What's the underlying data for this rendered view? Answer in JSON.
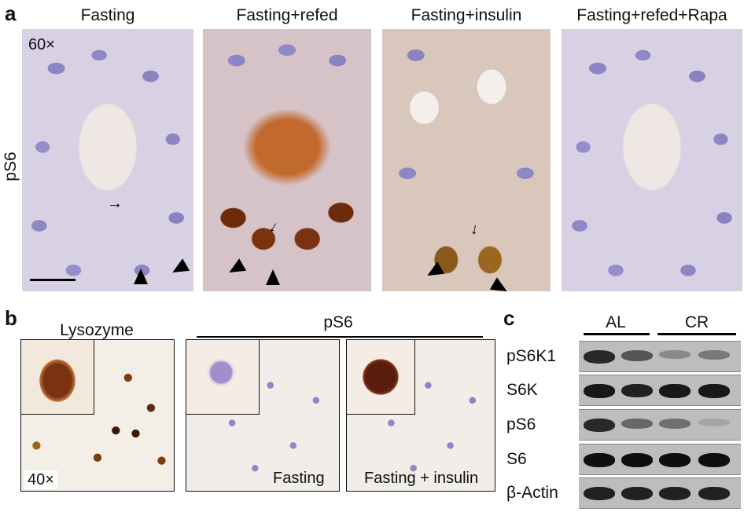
{
  "panel_a": {
    "letter": "a",
    "titles": [
      "Fasting",
      "Fasting+refed",
      "Fasting+insulin",
      "Fasting+refed+Rapa"
    ],
    "row_label": "pS6",
    "magnification": "60×"
  },
  "panel_b": {
    "letter": "b",
    "lysozyme_title": "Lysozyme",
    "ps6_title": "pS6",
    "magnification": "40×",
    "captions": [
      "Fasting",
      "Fasting + insulin"
    ]
  },
  "panel_c": {
    "letter": "c",
    "groups": [
      "AL",
      "CR"
    ],
    "rows": [
      {
        "label": "pS6K1",
        "intensity": [
          0.85,
          0.6,
          0.3,
          0.4
        ]
      },
      {
        "label": "S6K",
        "intensity": [
          0.95,
          0.9,
          0.95,
          0.95
        ]
      },
      {
        "label": "pS6",
        "intensity": [
          0.85,
          0.5,
          0.45,
          0.15
        ]
      },
      {
        "label": "S6",
        "intensity": [
          1.0,
          1.0,
          1.0,
          1.0
        ]
      },
      {
        "label": "β-Actin",
        "intensity": [
          0.9,
          0.9,
          0.9,
          0.9
        ]
      }
    ]
  }
}
